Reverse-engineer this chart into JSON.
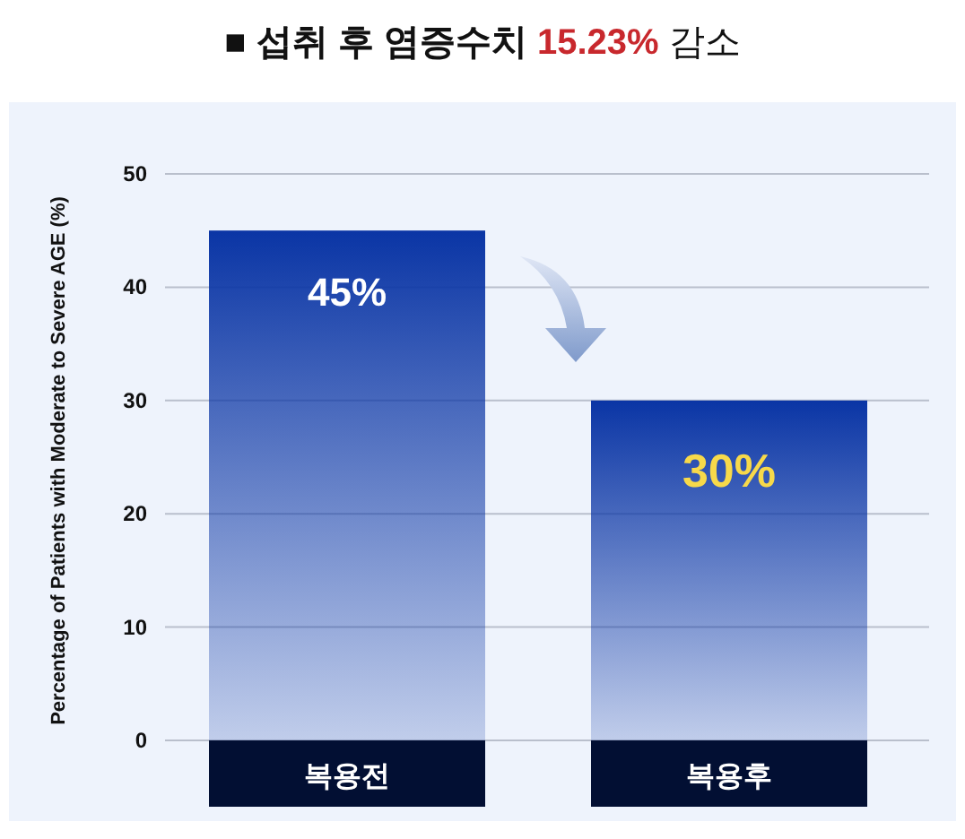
{
  "chart_data": {
    "type": "bar",
    "title": "■ 섭취 후 염증수치 15.23% 감소",
    "ylabel": "Percentage of Patients with Moderate to Severe AGE (%)",
    "categories": [
      "복용전",
      "복용후"
    ],
    "series": [
      {
        "color": "#0a35a5",
        "values": [
          45,
          30
        ],
        "value_labels": [
          "45%",
          "30%"
        ]
      }
    ],
    "ylim": [
      0,
      50
    ],
    "yticks": [
      0,
      10,
      20,
      30,
      40,
      50
    ],
    "grid": "y"
  }
}
